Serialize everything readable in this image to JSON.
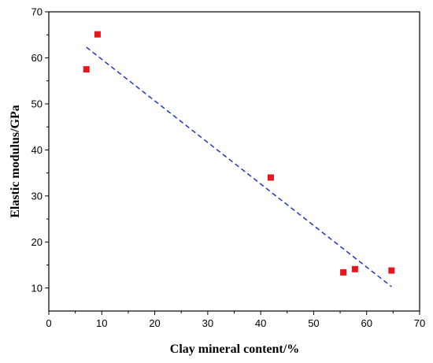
{
  "chart_data": {
    "type": "scatter",
    "xlabel": "Clay mineral content/%",
    "ylabel": "Elastic modulus/GPa",
    "xlim": [
      0,
      70
    ],
    "ylim": [
      5,
      70
    ],
    "x_ticks": [
      0,
      10,
      20,
      30,
      40,
      50,
      60,
      70
    ],
    "y_ticks": [
      10,
      20,
      30,
      40,
      50,
      60,
      70
    ],
    "grid": false,
    "legend": "none",
    "series": [
      {
        "kind": "points",
        "color": "#e8161b",
        "marker": "square",
        "points": [
          {
            "x": 7.1,
            "y": 57.5
          },
          {
            "x": 9.2,
            "y": 65.1
          },
          {
            "x": 41.9,
            "y": 34.0
          },
          {
            "x": 55.6,
            "y": 13.4
          },
          {
            "x": 57.8,
            "y": 14.1
          },
          {
            "x": 64.7,
            "y": 13.8
          }
        ]
      },
      {
        "kind": "fit",
        "color": "#1f35c9",
        "style": "dashed",
        "points": [
          {
            "x": 7.1,
            "y": 62.3
          },
          {
            "x": 64.7,
            "y": 10.3
          }
        ]
      }
    ]
  }
}
